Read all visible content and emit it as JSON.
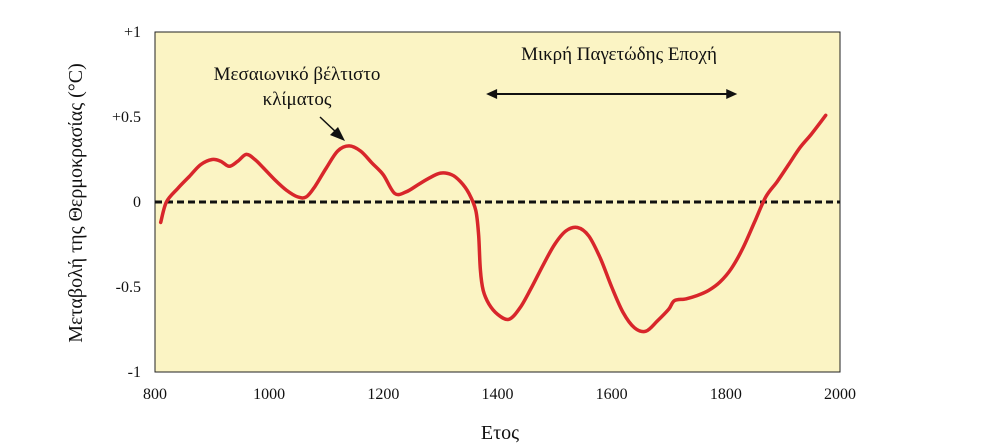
{
  "chart_data": {
    "type": "line",
    "title": "",
    "xlabel": "Ετος",
    "ylabel": "Μεταβολή της Θερμοκρασίας (°C)",
    "xlim": [
      800,
      2000
    ],
    "ylim": [
      -1,
      1
    ],
    "x_ticks": [
      "800",
      "1000",
      "1200",
      "1400",
      "1600",
      "1800",
      "2000"
    ],
    "y_ticks": [
      "+1",
      "+0.5",
      "0",
      "-0.5",
      "-1"
    ],
    "grid": false,
    "reference_line": {
      "y": 0,
      "style": "dashed"
    },
    "colors": {
      "background": "#fbf4c4",
      "line": "#d8262b",
      "reference": "#111111"
    },
    "annotations": {
      "medieval_line1": "Μεσαιωνικό βέλτιστο",
      "medieval_line2": "κλίματος",
      "little_ice_age": "Μικρή Παγετώδης Εποχή",
      "little_ice_age_span": [
        1380,
        1820
      ]
    },
    "series": [
      {
        "x": [
          810,
          820,
          840,
          860,
          880,
          900,
          915,
          930,
          945,
          960,
          975,
          990,
          1010,
          1030,
          1050,
          1065,
          1080,
          1100,
          1120,
          1140,
          1160,
          1180,
          1200,
          1220,
          1240,
          1260,
          1280,
          1300,
          1320,
          1335,
          1350,
          1362,
          1367,
          1370,
          1375,
          1385,
          1400,
          1420,
          1440,
          1460,
          1480,
          1500,
          1520,
          1540,
          1560,
          1580,
          1600,
          1620,
          1640,
          1660,
          1680,
          1700,
          1710,
          1730,
          1750,
          1770,
          1790,
          1810,
          1830,
          1850,
          1870,
          1890,
          1910,
          1930,
          1950,
          1975
        ],
        "y": [
          -0.12,
          0,
          0.08,
          0.15,
          0.22,
          0.25,
          0.24,
          0.21,
          0.24,
          0.28,
          0.25,
          0.2,
          0.13,
          0.07,
          0.03,
          0.03,
          0.09,
          0.2,
          0.3,
          0.33,
          0.3,
          0.23,
          0.16,
          0.05,
          0.06,
          0.1,
          0.14,
          0.17,
          0.16,
          0.12,
          0.05,
          -0.05,
          -0.2,
          -0.4,
          -0.52,
          -0.6,
          -0.66,
          -0.69,
          -0.62,
          -0.5,
          -0.37,
          -0.25,
          -0.17,
          -0.15,
          -0.2,
          -0.33,
          -0.5,
          -0.65,
          -0.74,
          -0.76,
          -0.7,
          -0.63,
          -0.58,
          -0.57,
          -0.55,
          -0.52,
          -0.47,
          -0.39,
          -0.27,
          -0.12,
          0.03,
          0.12,
          0.22,
          0.32,
          0.4,
          0.51
        ]
      }
    ]
  }
}
